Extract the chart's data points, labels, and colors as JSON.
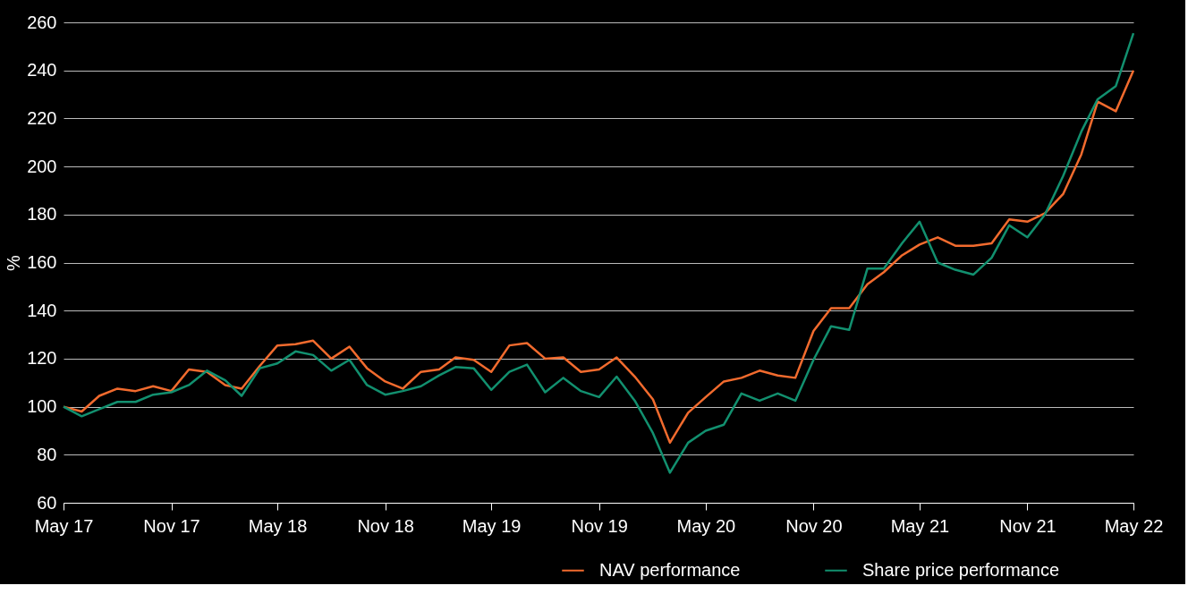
{
  "chart_data": {
    "type": "line",
    "ylabel": "%",
    "x": [
      "2017-05",
      "2017-06",
      "2017-07",
      "2017-08",
      "2017-09",
      "2017-10",
      "2017-11",
      "2017-12",
      "2018-01",
      "2018-02",
      "2018-03",
      "2018-04",
      "2018-05",
      "2018-06",
      "2018-07",
      "2018-08",
      "2018-09",
      "2018-10",
      "2018-11",
      "2018-12",
      "2019-01",
      "2019-02",
      "2019-03",
      "2019-04",
      "2019-05",
      "2019-06",
      "2019-07",
      "2019-08",
      "2019-09",
      "2019-10",
      "2019-11",
      "2019-12",
      "2020-01",
      "2020-02",
      "2020-03",
      "2020-04",
      "2020-05",
      "2020-06",
      "2020-07",
      "2020-08",
      "2020-09",
      "2020-10",
      "2020-11",
      "2020-12",
      "2021-01",
      "2021-02",
      "2021-03",
      "2021-04",
      "2021-05",
      "2021-06",
      "2021-07",
      "2021-08",
      "2021-09",
      "2021-10",
      "2021-11",
      "2021-12",
      "2022-01",
      "2022-02",
      "2022-03",
      "2022-04",
      "2022-05"
    ],
    "series": [
      {
        "name": "NAV performance",
        "color": "#f26b2e",
        "values": [
          100,
          98,
          104.5,
          107.5,
          106.5,
          108.5,
          106.5,
          115.5,
          114.5,
          109,
          107.5,
          117,
          125.5,
          126,
          127.5,
          120,
          125,
          116,
          110.5,
          107.5,
          114.5,
          115.5,
          120.5,
          119.5,
          114.5,
          125.5,
          126.5,
          120,
          120.5,
          114.5,
          115.5,
          120.5,
          112.5,
          103,
          85,
          97.5,
          104,
          110.5,
          112,
          115,
          113,
          112,
          131.5,
          141,
          141,
          151,
          156,
          163,
          167.5,
          170.5,
          167,
          167,
          168,
          178,
          177,
          180.5,
          188.5,
          205,
          227,
          223,
          240
        ]
      },
      {
        "name": "Share price performance",
        "color": "#12906f",
        "values": [
          100,
          96,
          99,
          102,
          102,
          105,
          106,
          109,
          115,
          111,
          104.5,
          116,
          118,
          123,
          121.5,
          115,
          119.5,
          109,
          105,
          106.5,
          108.5,
          113,
          116.5,
          116,
          107,
          114.5,
          117.5,
          106,
          112,
          106.5,
          104,
          112.5,
          102.5,
          89,
          72.5,
          85,
          90,
          92.5,
          105.5,
          102.5,
          105.5,
          102.5,
          119.5,
          133.5,
          132,
          157.5,
          157.5,
          168,
          177,
          160,
          157,
          155,
          162,
          175.5,
          170.5,
          180,
          196,
          214.5,
          228,
          233.5,
          255.5
        ]
      }
    ],
    "xlim": [
      "2017-05",
      "2022-05"
    ],
    "xticks": [
      {
        "value": "2017-05",
        "label": "May 17"
      },
      {
        "value": "2017-11",
        "label": "Nov 17"
      },
      {
        "value": "2018-05",
        "label": "May 18"
      },
      {
        "value": "2018-11",
        "label": "Nov 18"
      },
      {
        "value": "2019-05",
        "label": "May 19"
      },
      {
        "value": "2019-11",
        "label": "Nov 19"
      },
      {
        "value": "2020-05",
        "label": "May 20"
      },
      {
        "value": "2020-11",
        "label": "Nov 20"
      },
      {
        "value": "2021-05",
        "label": "May 21"
      },
      {
        "value": "2021-11",
        "label": "Nov 21"
      },
      {
        "value": "2022-05",
        "label": "May 22"
      }
    ],
    "ylim": [
      60,
      260
    ],
    "yticks": [
      60,
      80,
      100,
      120,
      140,
      160,
      180,
      200,
      220,
      240,
      260
    ],
    "grid": "y",
    "legend": "bottom right",
    "marker": "none",
    "line_style": "solid"
  }
}
